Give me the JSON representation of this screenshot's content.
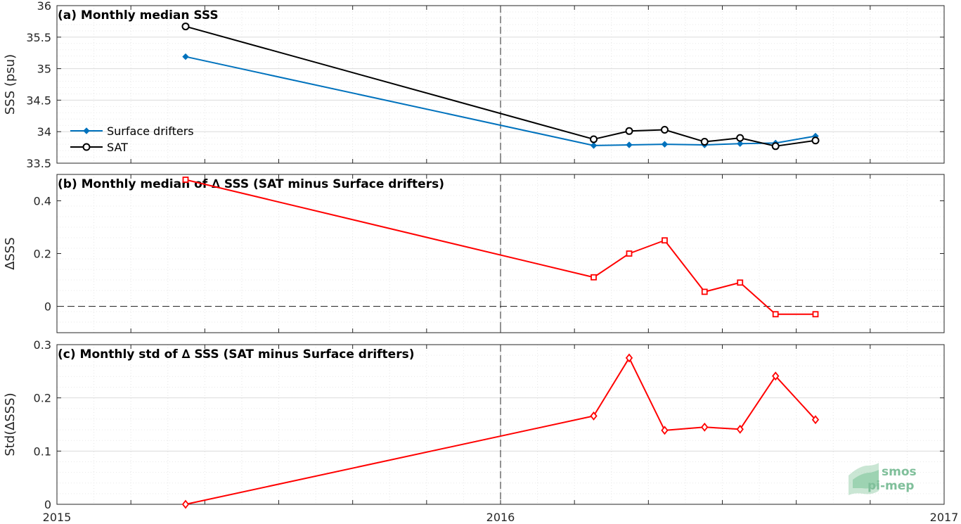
{
  "chart_data": [
    {
      "type": "line",
      "title": "(a) Monthly median SSS",
      "ylabel": "SSS (psu)",
      "xlabel": "",
      "xlim": [
        2015,
        2017
      ],
      "ylim": [
        33.5,
        36
      ],
      "yticks": [
        33.5,
        34,
        34.5,
        35,
        35.5,
        36
      ],
      "ytick_labels": [
        "33.5",
        "34",
        "34.5",
        "35",
        "35.5",
        "36"
      ],
      "grid": true,
      "legend_position": "left",
      "x": [
        2015.29,
        2016.21,
        2016.29,
        2016.37,
        2016.46,
        2016.54,
        2016.62,
        2016.71
      ],
      "series": [
        {
          "name": "Surface drifters",
          "color": "#0072bd",
          "marker": "diamond-filled",
          "values": [
            35.19,
            33.78,
            33.79,
            33.8,
            33.79,
            33.81,
            33.82,
            33.93
          ]
        },
        {
          "name": "SAT",
          "color": "#000000",
          "marker": "circle",
          "values": [
            35.67,
            33.88,
            34.01,
            34.03,
            33.84,
            33.9,
            33.77,
            33.86
          ]
        }
      ],
      "reference_vline": 2016
    },
    {
      "type": "line",
      "title": "(b) Monthly median of ∆ SSS (SAT minus Surface drifters)",
      "ylabel": "∆SSS",
      "xlabel": "",
      "xlim": [
        2015,
        2017
      ],
      "ylim": [
        -0.1,
        0.5
      ],
      "yticks": [
        0,
        0.2,
        0.4
      ],
      "ytick_labels": [
        "0",
        "0.2",
        "0.4"
      ],
      "grid": true,
      "x": [
        2015.29,
        2016.21,
        2016.29,
        2016.37,
        2016.46,
        2016.54,
        2016.62,
        2016.71
      ],
      "series": [
        {
          "color": "#ff0000",
          "marker": "square",
          "values": [
            0.48,
            0.11,
            0.2,
            0.25,
            0.055,
            0.09,
            -0.03,
            -0.03
          ]
        }
      ],
      "reference_vline": 2016,
      "reference_hline": 0
    },
    {
      "type": "line",
      "title": "(c) Monthly std of ∆ SSS (SAT minus Surface drifters)",
      "ylabel": "Std(∆SSS)",
      "xlabel": "",
      "xlim": [
        2015,
        2017
      ],
      "ylim": [
        0,
        0.3
      ],
      "yticks": [
        0,
        0.1,
        0.2,
        0.3
      ],
      "ytick_labels": [
        "0",
        "0.1",
        "0.2",
        "0.3"
      ],
      "xticks": [
        2015,
        2016,
        2017
      ],
      "xtick_labels": [
        "2015",
        "2016",
        "2017"
      ],
      "grid": true,
      "x": [
        2015.29,
        2016.21,
        2016.29,
        2016.37,
        2016.46,
        2016.54,
        2016.62,
        2016.71
      ],
      "series": [
        {
          "color": "#ff0000",
          "marker": "diamond",
          "values": [
            0.0,
            0.166,
            0.275,
            0.139,
            0.145,
            0.141,
            0.241,
            0.159
          ]
        }
      ],
      "reference_vline": 2016
    }
  ],
  "logo": {
    "line1": "smos",
    "line2": "pi-mep",
    "color": "#7fbf9a"
  }
}
